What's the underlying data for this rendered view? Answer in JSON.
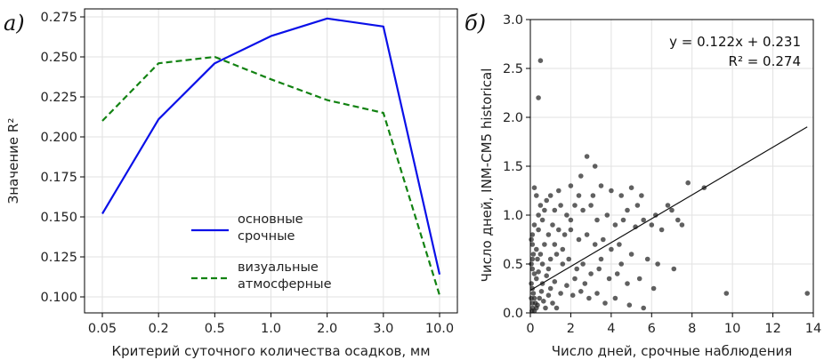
{
  "chart_data": [
    {
      "type": "line",
      "panel_label": "а)",
      "title": "",
      "xlabel": "Критерий суточного количества осадков, мм",
      "ylabel": "Значение R²",
      "categories": [
        "0.05",
        "0.2",
        "0.5",
        "1.0",
        "2.0",
        "3.0",
        "10.0"
      ],
      "ylim": [
        0.09,
        0.28
      ],
      "yticks": [
        "0.100",
        "0.125",
        "0.150",
        "0.175",
        "0.200",
        "0.225",
        "0.250",
        "0.275"
      ],
      "grid": true,
      "legend_position": "bottom-center",
      "series": [
        {
          "name": "основные срочные",
          "legend_lines": [
            "основные",
            "срочные"
          ],
          "color": "#0a10e8",
          "style": "solid",
          "values": [
            0.152,
            0.211,
            0.246,
            0.263,
            0.274,
            0.269,
            0.114
          ]
        },
        {
          "name": "визуальные атмосферные",
          "legend_lines": [
            "визуальные",
            "атмосферные"
          ],
          "color": "#128212",
          "style": "dashed",
          "values": [
            0.21,
            0.246,
            0.25,
            0.236,
            0.223,
            0.215,
            0.101
          ]
        }
      ]
    },
    {
      "type": "scatter",
      "panel_label": "б)",
      "title": "",
      "xlabel": "Число дней, срочные наблюдения",
      "ylabel": "Число дней, INM-CM5 historical",
      "xlim": [
        0,
        14
      ],
      "ylim": [
        0,
        3.0
      ],
      "xticks": [
        "0",
        "2",
        "4",
        "6",
        "8",
        "10",
        "12",
        "14"
      ],
      "yticks": [
        "0.0",
        "0.5",
        "1.0",
        "1.5",
        "2.0",
        "2.5",
        "3.0"
      ],
      "grid": true,
      "annotation": [
        "y = 0.122x + 0.231",
        "R² = 0.274"
      ],
      "fit": {
        "slope": 0.122,
        "intercept": 0.231,
        "x_range": [
          0,
          13.7
        ]
      },
      "point_color": "#222222",
      "points": [
        [
          0.5,
          2.58
        ],
        [
          0.4,
          2.2
        ],
        [
          9.7,
          0.2
        ],
        [
          13.7,
          0.2
        ],
        [
          8.6,
          1.28
        ],
        [
          7.8,
          1.33
        ],
        [
          2.8,
          1.6
        ],
        [
          3.2,
          1.5
        ],
        [
          2.5,
          1.4
        ],
        [
          2.0,
          1.3
        ],
        [
          3.5,
          1.3
        ],
        [
          4.0,
          1.25
        ],
        [
          5.0,
          1.28
        ],
        [
          4.5,
          1.2
        ],
        [
          5.5,
          1.2
        ],
        [
          6.8,
          1.1
        ],
        [
          7.0,
          1.05
        ],
        [
          7.5,
          0.9
        ],
        [
          6.5,
          0.85
        ],
        [
          6.0,
          0.9
        ],
        [
          0.2,
          1.28
        ],
        [
          0.3,
          1.2
        ],
        [
          0.5,
          1.1
        ],
        [
          0.8,
          1.15
        ],
        [
          1.2,
          1.05
        ],
        [
          1.5,
          1.1
        ],
        [
          1.8,
          1.0
        ],
        [
          2.2,
          1.1
        ],
        [
          2.6,
          1.05
        ],
        [
          3.0,
          1.1
        ],
        [
          3.3,
          0.95
        ],
        [
          3.8,
          1.0
        ],
        [
          4.2,
          0.9
        ],
        [
          4.6,
          0.95
        ],
        [
          5.2,
          0.88
        ],
        [
          5.6,
          0.95
        ],
        [
          0.2,
          0.9
        ],
        [
          0.4,
          0.85
        ],
        [
          0.6,
          0.95
        ],
        [
          0.9,
          0.8
        ],
        [
          1.1,
          0.9
        ],
        [
          1.4,
          0.85
        ],
        [
          1.7,
          0.8
        ],
        [
          2.0,
          0.85
        ],
        [
          2.4,
          0.75
        ],
        [
          2.8,
          0.8
        ],
        [
          3.2,
          0.7
        ],
        [
          3.6,
          0.75
        ],
        [
          4.0,
          0.65
        ],
        [
          4.4,
          0.7
        ],
        [
          5.0,
          0.6
        ],
        [
          5.8,
          0.55
        ],
        [
          6.3,
          0.5
        ],
        [
          7.1,
          0.45
        ],
        [
          0.1,
          0.7
        ],
        [
          0.3,
          0.65
        ],
        [
          0.5,
          0.6
        ],
        [
          0.7,
          0.7
        ],
        [
          1.0,
          0.55
        ],
        [
          1.3,
          0.6
        ],
        [
          1.6,
          0.5
        ],
        [
          1.9,
          0.55
        ],
        [
          2.3,
          0.45
        ],
        [
          2.6,
          0.5
        ],
        [
          3.0,
          0.4
        ],
        [
          3.4,
          0.45
        ],
        [
          3.9,
          0.35
        ],
        [
          4.3,
          0.4
        ],
        [
          4.8,
          0.3
        ],
        [
          5.4,
          0.35
        ],
        [
          6.1,
          0.25
        ],
        [
          0.1,
          0.45
        ],
        [
          0.2,
          0.4
        ],
        [
          0.3,
          0.35
        ],
        [
          0.4,
          0.42
        ],
        [
          0.6,
          0.3
        ],
        [
          0.8,
          0.38
        ],
        [
          1.0,
          0.25
        ],
        [
          1.2,
          0.32
        ],
        [
          1.5,
          0.2
        ],
        [
          1.8,
          0.28
        ],
        [
          2.1,
          0.18
        ],
        [
          2.5,
          0.22
        ],
        [
          2.9,
          0.15
        ],
        [
          3.3,
          0.2
        ],
        [
          3.7,
          0.1
        ],
        [
          4.2,
          0.15
        ],
        [
          4.9,
          0.08
        ],
        [
          5.6,
          0.05
        ],
        [
          0.05,
          0.3
        ],
        [
          0.1,
          0.25
        ],
        [
          0.15,
          0.2
        ],
        [
          0.2,
          0.15
        ],
        [
          0.25,
          0.1
        ],
        [
          0.3,
          0.05
        ],
        [
          0.05,
          0.15
        ],
        [
          0.1,
          0.1
        ],
        [
          0.12,
          0.05
        ],
        [
          0.08,
          0.02
        ],
        [
          0.2,
          0.02
        ],
        [
          0.35,
          0.08
        ],
        [
          0.45,
          0.15
        ],
        [
          0.55,
          0.22
        ],
        [
          0.65,
          0.12
        ],
        [
          0.75,
          0.05
        ],
        [
          0.9,
          0.18
        ],
        [
          1.1,
          0.1
        ],
        [
          1.3,
          0.05
        ],
        [
          0.05,
          0.5
        ],
        [
          0.1,
          0.55
        ],
        [
          0.15,
          0.6
        ],
        [
          0.05,
          0.75
        ],
        [
          0.1,
          0.8
        ],
        [
          0.4,
          1.0
        ],
        [
          0.7,
          1.05
        ],
        [
          1.0,
          1.2
        ],
        [
          1.4,
          1.25
        ],
        [
          2.4,
          1.2
        ],
        [
          3.1,
          1.2
        ],
        [
          4.8,
          1.05
        ],
        [
          5.3,
          1.1
        ],
        [
          6.2,
          1.0
        ],
        [
          7.3,
          0.95
        ],
        [
          2.0,
          0.95
        ],
        [
          1.2,
          0.7
        ],
        [
          0.9,
          0.45
        ],
        [
          0.6,
          0.5
        ],
        [
          0.35,
          0.55
        ],
        [
          1.6,
          0.65
        ],
        [
          2.2,
          0.35
        ],
        [
          2.7,
          0.3
        ],
        [
          3.5,
          0.55
        ],
        [
          4.5,
          0.5
        ]
      ]
    }
  ]
}
